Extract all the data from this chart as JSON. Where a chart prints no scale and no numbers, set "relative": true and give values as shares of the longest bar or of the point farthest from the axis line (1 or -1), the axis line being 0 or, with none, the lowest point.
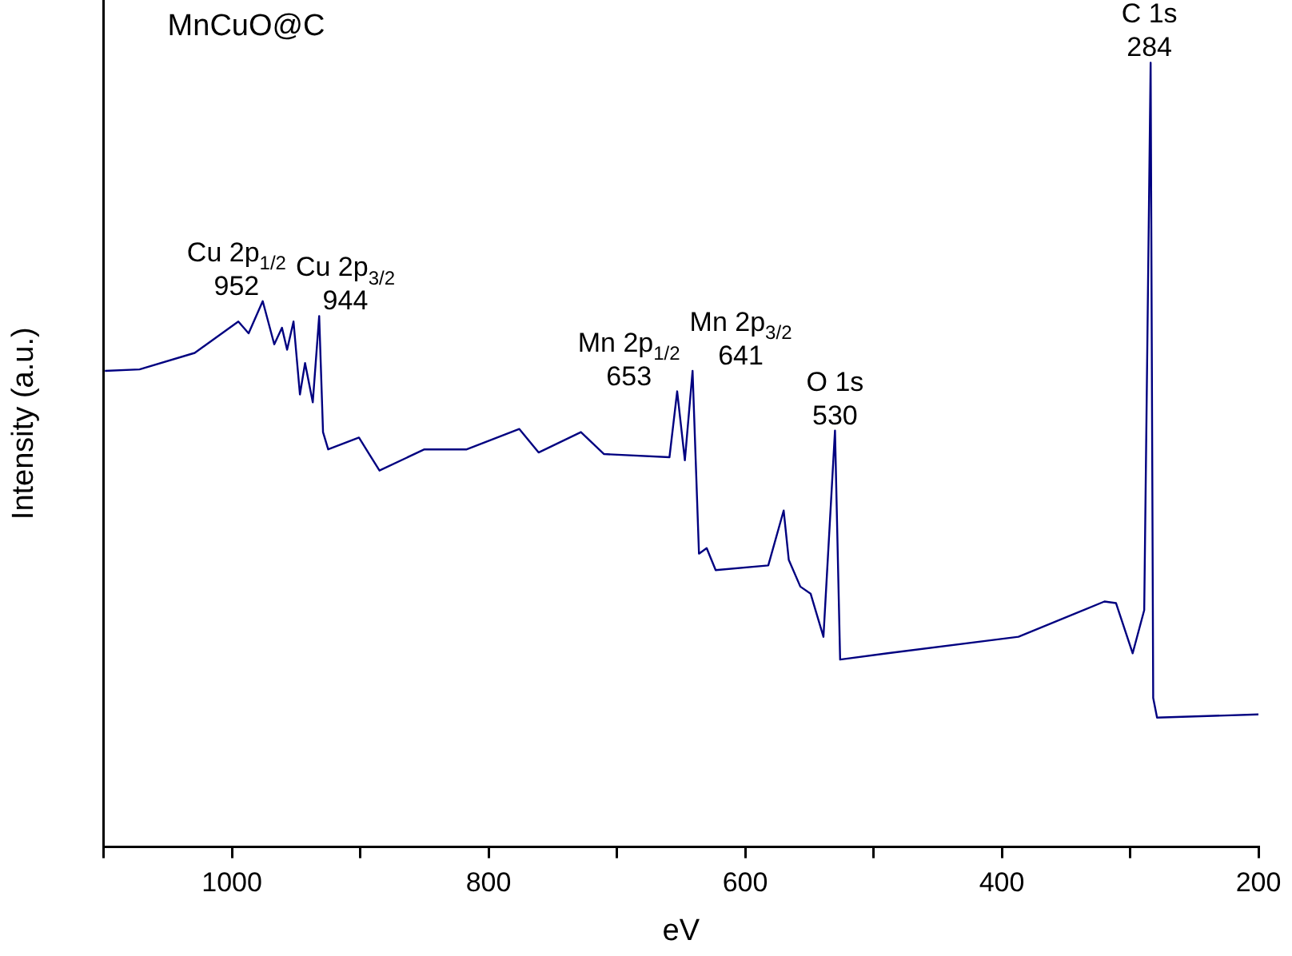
{
  "chart_data": {
    "type": "line",
    "title": "MnCuO@C",
    "xlabel": "eV",
    "ylabel": "Intensity (a.u.)",
    "relative": true,
    "xlim": [
      1100,
      200
    ],
    "xticks": [
      {
        "value": 1100,
        "label": null
      },
      1000,
      {
        "value": 900,
        "label": null
      },
      800,
      {
        "value": 700,
        "label": null
      },
      600,
      {
        "value": 500,
        "label": null
      },
      400,
      {
        "value": 300,
        "label": null
      },
      200
    ],
    "grid": false,
    "legend": false,
    "marker": "none",
    "line_style": "solid",
    "series": [
      {
        "color": "#000080",
        "x": [
          1099,
          1072,
          1029,
          995,
          987,
          976,
          967,
          961,
          957,
          952,
          947,
          943,
          937,
          932,
          929,
          925,
          901,
          893,
          885,
          850,
          817,
          776,
          761,
          728,
          710,
          659,
          653,
          647,
          641,
          636,
          630,
          623,
          582,
          570,
          566,
          557,
          549,
          539,
          530,
          526,
          489,
          387,
          320,
          311,
          298,
          289,
          284,
          282,
          279,
          200
        ],
        "values": [
          0.607,
          0.609,
          0.63,
          0.67,
          0.655,
          0.696,
          0.641,
          0.662,
          0.634,
          0.67,
          0.577,
          0.617,
          0.567,
          0.677,
          0.529,
          0.507,
          0.522,
          0.501,
          0.48,
          0.507,
          0.507,
          0.533,
          0.503,
          0.529,
          0.501,
          0.497,
          0.581,
          0.493,
          0.607,
          0.374,
          0.381,
          0.353,
          0.359,
          0.429,
          0.366,
          0.332,
          0.323,
          0.268,
          0.531,
          0.239,
          0.247,
          0.268,
          0.313,
          0.311,
          0.247,
          0.302,
          1.0,
          0.19,
          0.165,
          0.169
        ]
      }
    ],
    "annotations": [
      {
        "text": "Cu 2p$_{1/2}$\n952",
        "x": 976,
        "y": 0.696
      },
      {
        "text": "Cu 2p$_{3/2}$\n944",
        "x": 932,
        "y": 0.677
      },
      {
        "text": "Mn 2p$_{1/2}$\n653",
        "x": 653,
        "y": 0.581
      },
      {
        "text": "Mn 2p$_{3/2}$\n641",
        "x": 641,
        "y": 0.607
      },
      {
        "text": "O 1s\n530",
        "x": 530,
        "y": 0.531
      },
      {
        "text": "C 1s\n284",
        "x": 285,
        "y": 1.0
      }
    ]
  }
}
